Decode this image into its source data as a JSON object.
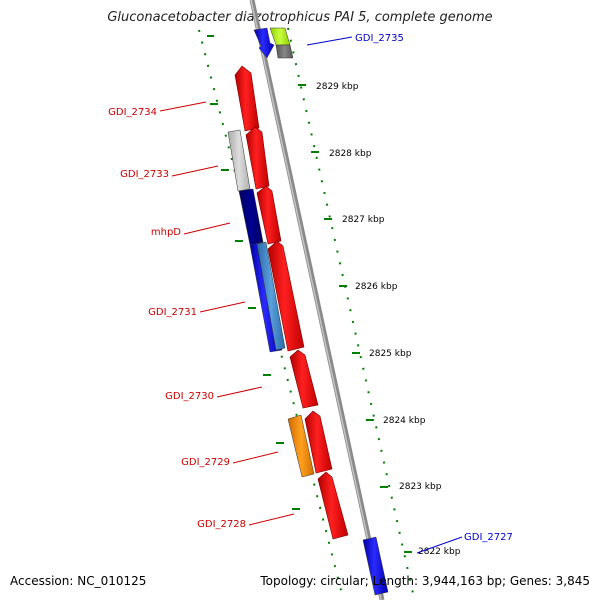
{
  "title": "Gluconacetobacter diazotrophicus PAI 5, complete genome",
  "accession": "Accession: NC_010125",
  "topology": "Topology: circular; Length: 3,944,163 bp; Genes: 3,845",
  "scale_labels": [
    "2829 kbp",
    "2828 kbp",
    "2827 kbp",
    "2826 kbp",
    "2825 kbp",
    "2824 kbp",
    "2823 kbp",
    "2822 kbp"
  ],
  "genes_left": [
    "GDI_2734",
    "GDI_2733",
    "mhpD",
    "GDI_2731",
    "GDI_2730",
    "GDI_2729",
    "GDI_2728"
  ],
  "genes_right": [
    "GDI_2735",
    "GDI_2727"
  ],
  "colors": {
    "forward_gene": "#ff0000",
    "reverse_gene": "#0000ff",
    "left_label": "#cc0000",
    "right_label": "#0000cc",
    "tick": "#008000",
    "backbone": "#888888"
  }
}
